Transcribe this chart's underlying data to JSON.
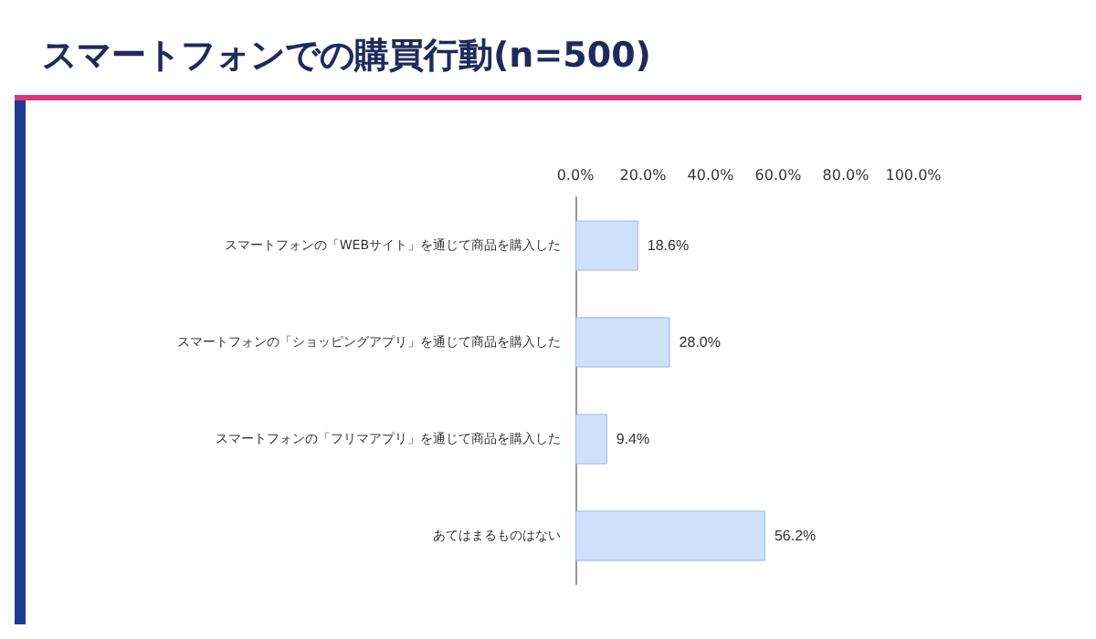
{
  "chart_data": {
    "type": "bar",
    "orientation": "horizontal",
    "title": "スマートフォンでの購買行動(n=500)",
    "categories": [
      "スマートフォンの「WEBサイト」を通じて商品を購入した",
      "スマートフォンの「ショッピングアプリ」を通じて商品を購入した",
      "スマートフォンの「フリマアプリ」を通じて商品を購入した",
      "あてはまるものはない"
    ],
    "values": [
      18.6,
      28.0,
      9.4,
      56.2
    ],
    "value_labels": [
      "18.6%",
      "28.0%",
      "9.4%",
      "56.2%"
    ],
    "color": "#cfe0fb",
    "xlim": [
      0,
      100
    ],
    "xticks": [
      {
        "value": 0,
        "label": "0.0%"
      },
      {
        "value": 20,
        "label": "20.0%"
      },
      {
        "value": 40,
        "label": "40.0%"
      },
      {
        "value": 60,
        "label": "60.0%"
      },
      {
        "value": 80,
        "label": "80.0%"
      },
      {
        "value": 100,
        "label": "100.0%"
      }
    ],
    "grid": false
  }
}
